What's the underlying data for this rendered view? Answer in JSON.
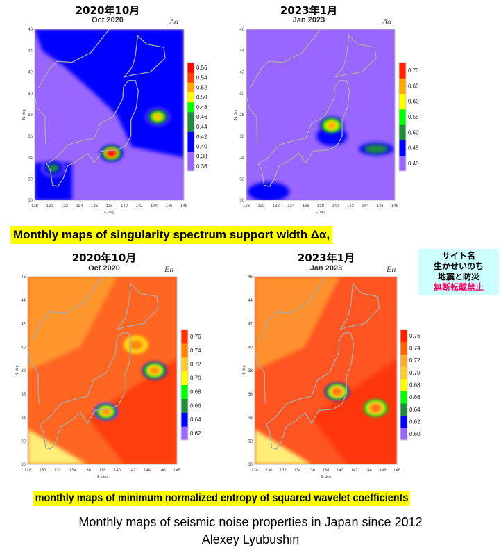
{
  "chart_data": [
    {
      "type": "heatmap",
      "heading": "2020年10月",
      "title": "Oct 2020",
      "symbol": "Δα",
      "xlabel": "E, deg",
      "ylabel": "N, deg",
      "xlim": [
        128,
        148
      ],
      "ylim": [
        30,
        46
      ],
      "xticks": [
        128,
        130,
        132,
        134,
        136,
        138,
        140,
        142,
        144,
        146,
        148
      ],
      "yticks": [
        30,
        32,
        34,
        36,
        38,
        40,
        42,
        44,
        46
      ],
      "colorbar": {
        "ticks": [
          "0.36",
          "0.38",
          "0.40",
          "0.42",
          "0.44",
          "0.46",
          "0.48",
          "0.50",
          "0.52",
          "0.54",
          "0.56"
        ],
        "colors": [
          "#9966ff",
          "#9966ff",
          "#0000ff",
          "#0000ff",
          "#228b3c",
          "#228b3c",
          "#00ff00",
          "#ffff00",
          "#ffaa00",
          "#ff4400",
          "#ff0000"
        ]
      },
      "background": "#9966ff",
      "anomalies": [
        {
          "lon": 138.3,
          "lat": 34.4,
          "value": 0.56
        },
        {
          "lon": 144.5,
          "lat": 37.8,
          "value": 0.52
        },
        {
          "lon": 130.5,
          "lat": 33.0,
          "value": 0.45
        }
      ]
    },
    {
      "type": "heatmap",
      "heading": "2023年1月",
      "title": "Jan 2023",
      "symbol": "Δα",
      "xlabel": "E, deg",
      "ylabel": "N, deg",
      "xlim": [
        128,
        148
      ],
      "ylim": [
        30,
        46
      ],
      "xticks": [
        128,
        130,
        132,
        134,
        136,
        138,
        140,
        142,
        144,
        146,
        148
      ],
      "yticks": [
        30,
        32,
        34,
        36,
        38,
        40,
        42,
        44,
        46
      ],
      "colorbar": {
        "ticks": [
          "0.40",
          "0.45",
          "0.50",
          "0.55",
          "0.60",
          "0.65",
          "0.70"
        ],
        "colors": [
          "#9966ff",
          "#0000ff",
          "#228b3c",
          "#00ff00",
          "#ffff00",
          "#ffaa00",
          "#ff2200"
        ]
      },
      "background": "#9966ff",
      "anomalies": [
        {
          "lon": 139.5,
          "lat": 37.0,
          "value": 0.68
        },
        {
          "lon": 145.5,
          "lat": 34.8,
          "value": 0.53
        }
      ]
    },
    {
      "type": "heatmap",
      "heading": "2020年10月",
      "title": "Oct 2020",
      "symbol": "En",
      "xlabel": "E, deg",
      "ylabel": "N, deg",
      "xlim": [
        128,
        148
      ],
      "ylim": [
        30,
        46
      ],
      "xticks": [
        128,
        130,
        132,
        134,
        136,
        138,
        140,
        142,
        144,
        146,
        148
      ],
      "yticks": [
        30,
        32,
        34,
        36,
        38,
        40,
        42,
        44,
        46
      ],
      "colorbar": {
        "ticks": [
          "0.62",
          "0.64",
          "0.66",
          "0.68",
          "0.70",
          "0.72",
          "0.74",
          "0.76"
        ],
        "colors": [
          "#9966ff",
          "#0000ff",
          "#228b3c",
          "#00ff00",
          "#ffff00",
          "#ffcc33",
          "#ff8800",
          "#ff3300"
        ]
      },
      "background": "#ff6622",
      "anomalies": [
        {
          "lon": 138.5,
          "lat": 34.5,
          "value": 0.62
        },
        {
          "lon": 145.0,
          "lat": 38.0,
          "value": 0.63
        },
        {
          "lon": 142.5,
          "lat": 40.2,
          "value": 0.69
        }
      ]
    },
    {
      "type": "heatmap",
      "heading": "2023年1月",
      "title": "Jan 2023",
      "symbol": "En",
      "xlabel": "E, deg",
      "ylabel": "N, deg",
      "xlim": [
        128,
        148
      ],
      "ylim": [
        30,
        46
      ],
      "xticks": [
        128,
        130,
        132,
        134,
        136,
        138,
        140,
        142,
        144,
        146,
        148
      ],
      "yticks": [
        30,
        32,
        34,
        36,
        38,
        40,
        42,
        44,
        46
      ],
      "colorbar": {
        "ticks": [
          "0.60",
          "0.62",
          "0.64",
          "0.66",
          "0.68",
          "0.70",
          "0.72",
          "0.74",
          "0.76"
        ],
        "colors": [
          "#9966ff",
          "#0000ff",
          "#228b3c",
          "#00ff00",
          "#ffff00",
          "#ffcc33",
          "#ffaa33",
          "#ff6600",
          "#ff2200"
        ]
      },
      "background": "#ff5522",
      "anomalies": [
        {
          "lon": 139.6,
          "lat": 36.2,
          "value": 0.61
        },
        {
          "lon": 145.0,
          "lat": 34.8,
          "value": 0.63
        }
      ]
    }
  ],
  "captions": {
    "delta_alpha": "Monthly maps of  singularity spectrum support width Δα,",
    "entropy": "monthly maps of  minimum normalized entropy of squared wavelet coefficients",
    "footer_line1": "Monthly maps of seismic noise properties in Japan since 2012",
    "footer_line2": "Alexey Lyubushin"
  },
  "notice": {
    "line1": "サイト名",
    "line2": "生かせいのち",
    "line3": "地震と防災",
    "line4": "無断転載禁止",
    "warn_color": "#ff0066"
  }
}
